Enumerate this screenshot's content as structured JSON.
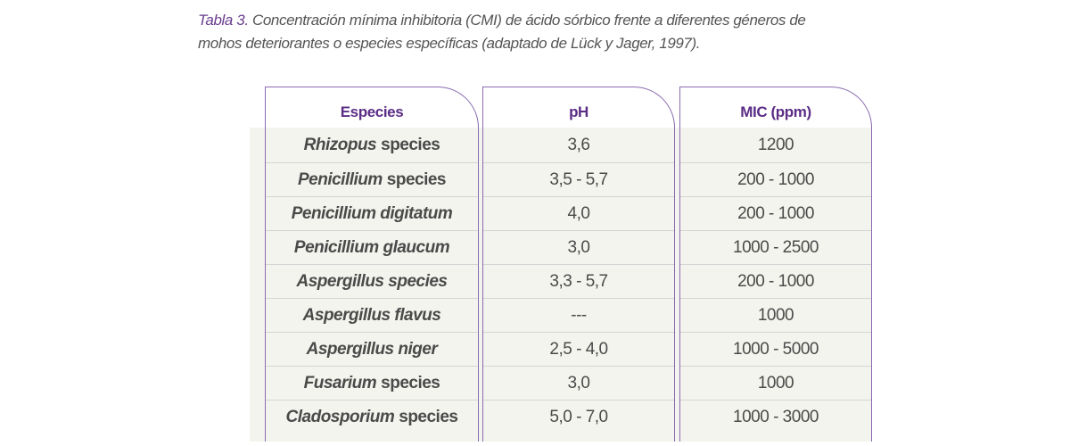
{
  "caption": {
    "label": "Tabla 3.",
    "line1": " Concentración mínima inhibitoria (CMI) de ácido sórbico frente a diferentes géneros de",
    "line2": "mohos deteriorantes o especies específicas (adaptado de Lück y Jager, 1997)."
  },
  "headers": {
    "species": "Especies",
    "ph": "pH",
    "mic": "MIC (ppm)"
  },
  "rows": [
    {
      "genus": "Rhizopus",
      "suffix": "species",
      "ph": "3,6",
      "mic": "1200"
    },
    {
      "genus": "Penicillium",
      "suffix": "species",
      "ph": "3,5 - 5,7",
      "mic": "200 - 1000"
    },
    {
      "genus": "Penicillium digitatum",
      "suffix": "",
      "ph": "4,0",
      "mic": "200 - 1000"
    },
    {
      "genus": "Penicillium glaucum",
      "suffix": "",
      "ph": "3,0",
      "mic": "1000 - 2500"
    },
    {
      "genus": "Aspergillus species",
      "suffix": "",
      "ph": "3,3 - 5,7",
      "mic": "200 - 1000"
    },
    {
      "genus": "Aspergillus flavus",
      "suffix": "",
      "ph": "---",
      "mic": "1000"
    },
    {
      "genus": "Aspergillus niger",
      "suffix": "",
      "ph": "2,5 - 4,0",
      "mic": "1000 - 5000"
    },
    {
      "genus": "Fusarium",
      "suffix": "species",
      "ph": "3,0",
      "mic": "1000"
    },
    {
      "genus": "Cladosporium",
      "suffix": "species",
      "ph": "5,0 - 7,0",
      "mic": "1000 - 3000"
    }
  ],
  "colors": {
    "header_text": "#5b2d86",
    "column_border": "#8a6bb0",
    "row_background": "#f4f4ee",
    "body_text": "#4a4a4a"
  }
}
